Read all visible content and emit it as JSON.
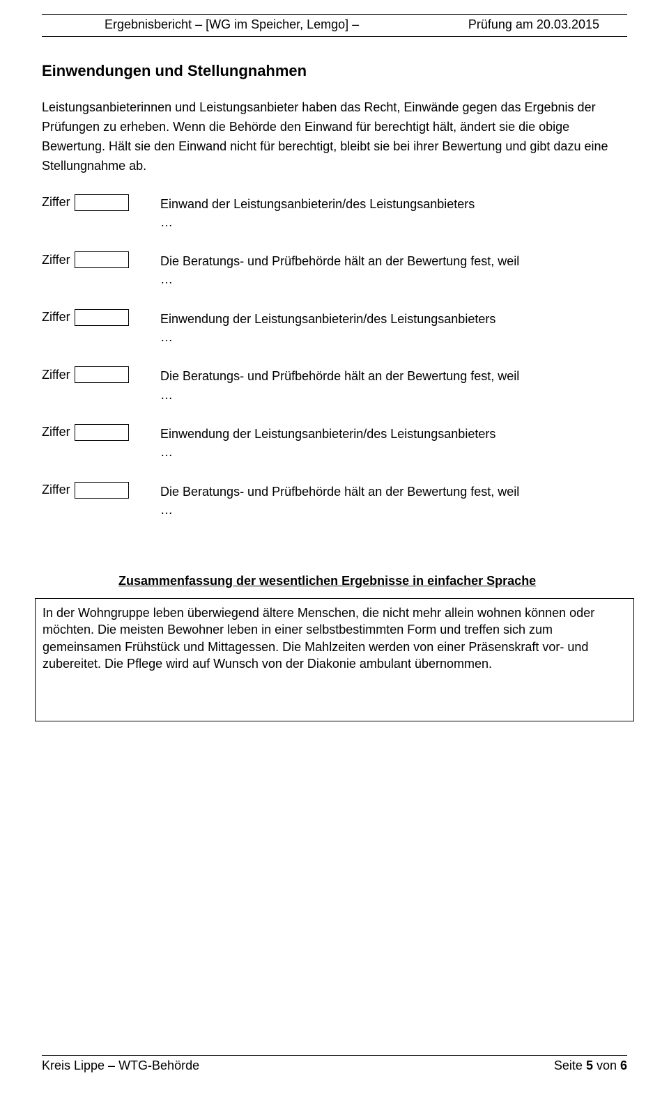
{
  "header": {
    "left": "Ergebnisbericht – [WG im Speicher, Lemgo] –",
    "right": "Prüfung am 20.03.2015"
  },
  "section_title": "Einwendungen und Stellungnahmen",
  "intro_text": "Leistungsanbieterinnen und Leistungsanbieter haben das Recht, Einwände gegen das Ergebnis der Prüfungen zu erheben. Wenn die Behörde den Einwand für berechtigt hält, ändert sie die obige Bewertung. Hält sie den Einwand nicht für berechtigt, bleibt sie bei ihrer Bewertung und gibt dazu eine Stellungnahme ab.",
  "ziffer_label": "Ziffer",
  "ziffer_rows": [
    {
      "desc": "Einwand der Leistungsanbieterin/des Leistungsanbieters",
      "sub": "…"
    },
    {
      "desc": "Die Beratungs- und Prüfbehörde hält an der Bewertung fest, weil",
      "sub": "…"
    },
    {
      "desc": "Einwendung der Leistungsanbieterin/des Leistungsanbieters",
      "sub": "…"
    },
    {
      "desc": "Die Beratungs- und Prüfbehörde hält an der Bewertung fest, weil",
      "sub": "…"
    },
    {
      "desc": "Einwendung der Leistungsanbieterin/des Leistungsanbieters",
      "sub": "…"
    },
    {
      "desc": "Die Beratungs- und Prüfbehörde hält an der Bewertung fest, weil",
      "sub": "…"
    }
  ],
  "summary_title": "Zusammenfassung der wesentlichen Ergebnisse in einfacher Sprache",
  "summary_text": "In der Wohngruppe leben überwiegend ältere Menschen, die nicht mehr allein wohnen können oder möchten. Die meisten Bewohner leben in einer selbstbestimmten Form und treffen sich zum gemeinsamen Frühstück und Mittagessen. Die Mahlzeiten werden von einer Präsenskraft vor- und zubereitet. Die Pflege wird auf Wunsch von der Diakonie ambulant übernommen.",
  "footer": {
    "left": "Kreis Lippe – WTG-Behörde",
    "page_prefix": "Seite ",
    "page_current": "5",
    "page_mid": " von ",
    "page_total": "6"
  }
}
